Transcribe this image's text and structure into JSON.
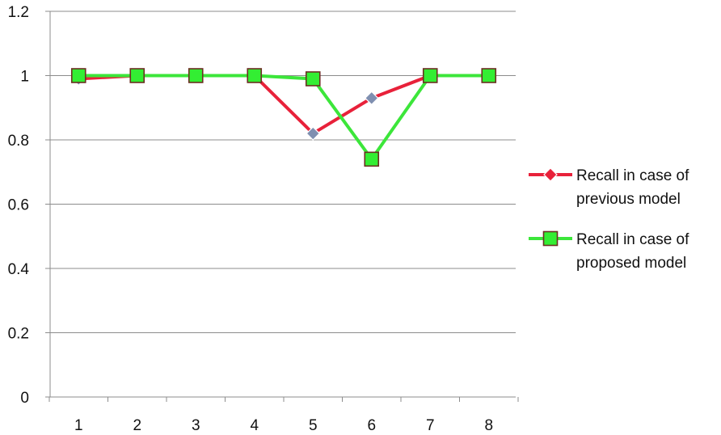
{
  "chart_data": {
    "type": "line",
    "x": [
      1,
      2,
      3,
      4,
      5,
      6,
      7,
      8
    ],
    "categories": [
      "1",
      "2",
      "3",
      "4",
      "5",
      "6",
      "7",
      "8"
    ],
    "ylim": [
      0,
      1.2
    ],
    "yticks": [
      "0",
      "0.2",
      "0.4",
      "0.6",
      "0.8",
      "1",
      "1.2"
    ],
    "ytick_values": [
      0,
      0.2,
      0.4,
      0.6,
      0.8,
      1.0,
      1.2
    ],
    "grid": true,
    "legend_position": "right",
    "title": "",
    "xlabel": "",
    "ylabel": "",
    "series": [
      {
        "name_lines": [
          "Recall in case of",
          "previous model"
        ],
        "values": [
          0.99,
          1.0,
          1.0,
          1.0,
          0.82,
          0.93,
          1.0,
          1.0
        ],
        "color": "#e8213a",
        "marker": "diamond",
        "marker_color": "#7f8fb0"
      },
      {
        "name_lines": [
          "Recall in case of",
          "proposed model"
        ],
        "values": [
          1.0,
          1.0,
          1.0,
          1.0,
          0.99,
          0.74,
          1.0,
          1.0
        ],
        "color": "#3ce63a",
        "marker": "square",
        "marker_color": "#33ee33"
      }
    ]
  }
}
